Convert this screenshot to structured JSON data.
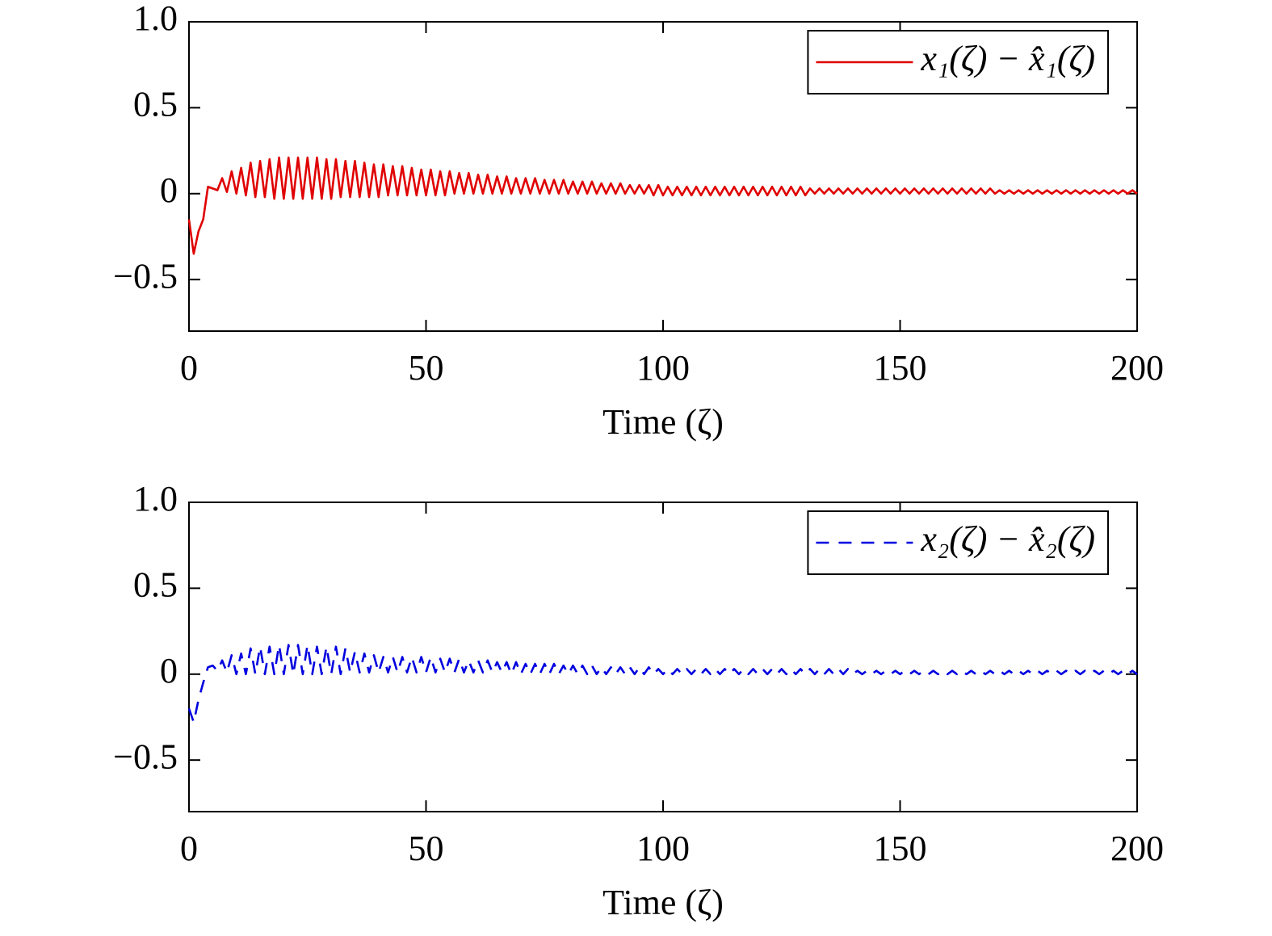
{
  "chart_data": [
    {
      "type": "line",
      "xlabel": "Time (ζ)",
      "xlim": [
        0,
        200
      ],
      "xticks": [
        0,
        50,
        100,
        150,
        200
      ],
      "ylim": [
        -0.8,
        1.0
      ],
      "yticks": [
        {
          "value": -0.5,
          "label": "−0.5"
        },
        0,
        0.5,
        {
          "value": 1.0,
          "label": "1.0"
        }
      ],
      "legend": "upper right",
      "x": [
        0,
        1,
        2,
        3,
        4,
        5,
        6,
        7,
        8,
        9,
        10,
        11,
        12,
        13,
        14,
        15,
        16,
        17,
        18,
        19,
        20,
        21,
        22,
        23,
        24,
        25,
        26,
        27,
        28,
        29,
        30,
        31,
        32,
        33,
        34,
        35,
        36,
        37,
        38,
        39,
        40,
        41,
        42,
        43,
        44,
        45,
        46,
        47,
        48,
        49,
        50,
        51,
        52,
        53,
        54,
        55,
        56,
        57,
        58,
        59,
        60,
        61,
        62,
        63,
        64,
        65,
        66,
        67,
        68,
        69,
        70,
        71,
        72,
        73,
        74,
        75,
        76,
        77,
        78,
        79,
        80,
        81,
        82,
        83,
        84,
        85,
        86,
        87,
        88,
        89,
        90,
        91,
        92,
        93,
        94,
        95,
        96,
        97,
        98,
        99,
        100,
        101,
        102,
        103,
        104,
        105,
        106,
        107,
        108,
        109,
        110,
        111,
        112,
        113,
        114,
        115,
        116,
        117,
        118,
        119,
        120,
        121,
        122,
        123,
        124,
        125,
        126,
        127,
        128,
        129,
        130,
        131,
        132,
        133,
        134,
        135,
        136,
        137,
        138,
        139,
        140,
        141,
        142,
        143,
        144,
        145,
        146,
        147,
        148,
        149,
        150,
        151,
        152,
        153,
        154,
        155,
        156,
        157,
        158,
        159,
        160,
        161,
        162,
        163,
        164,
        165,
        166,
        167,
        168,
        169,
        170,
        171,
        172,
        173,
        174,
        175,
        176,
        177,
        178,
        179,
        180,
        181,
        182,
        183,
        184,
        185,
        186,
        187,
        188,
        189,
        190,
        191,
        192,
        193,
        194,
        195,
        196,
        197,
        198,
        199,
        200
      ],
      "series": [
        {
          "name": "x₁(ζ) − x̂₁(ζ)",
          "color": "#e00000",
          "linestyle": "solid",
          "values": [
            -0.15,
            -0.35,
            -0.22,
            -0.15,
            0.04,
            0.03,
            0.02,
            0.09,
            0.01,
            0.13,
            0,
            0.15,
            -0.01,
            0.18,
            -0.02,
            0.19,
            -0.02,
            0.2,
            -0.03,
            0.21,
            -0.03,
            0.21,
            -0.03,
            0.21,
            -0.03,
            0.21,
            -0.03,
            0.21,
            -0.03,
            0.2,
            -0.03,
            0.2,
            -0.02,
            0.19,
            -0.02,
            0.19,
            -0.02,
            0.18,
            -0.02,
            0.17,
            -0.02,
            0.17,
            -0.01,
            0.16,
            -0.01,
            0.16,
            -0.01,
            0.15,
            -0.01,
            0.14,
            -0.01,
            0.14,
            -0.01,
            0.13,
            -0.01,
            0.13,
            0,
            0.12,
            0,
            0.12,
            0,
            0.11,
            0,
            0.11,
            0,
            0.1,
            0,
            0.1,
            0,
            0.09,
            0,
            0.09,
            0,
            0.09,
            0,
            0.08,
            0,
            0.08,
            0,
            0.08,
            0,
            0.07,
            0,
            0.07,
            0,
            0.07,
            0,
            0.06,
            0,
            0.06,
            0,
            0.06,
            0,
            0.05,
            0,
            0.05,
            0,
            0.05,
            -0.01,
            0.05,
            -0.01,
            0.04,
            -0.01,
            0.04,
            -0.01,
            0.04,
            -0.01,
            0.04,
            -0.01,
            0.04,
            -0.01,
            0.04,
            -0.01,
            0.04,
            -0.01,
            0.04,
            -0.01,
            0.04,
            -0.01,
            0.04,
            -0.01,
            0.04,
            -0.01,
            0.04,
            -0.01,
            0.04,
            -0.01,
            0.04,
            -0.01,
            0.04,
            -0.01,
            0.03,
            0,
            0.03,
            0,
            0.03,
            0,
            0.03,
            0,
            0.03,
            0,
            0.03,
            0,
            0.03,
            0,
            0.03,
            0,
            0.03,
            0,
            0.03,
            0,
            0.03,
            0,
            0.03,
            0,
            0.03,
            0,
            0.03,
            0,
            0.03,
            0,
            0.03,
            0,
            0.03,
            0,
            0.03,
            0,
            0.03,
            0,
            0.03,
            0,
            0.02,
            0,
            0.02,
            0,
            0.02,
            0,
            0.02,
            0,
            0.02,
            0,
            0.02,
            0,
            0.02,
            0,
            0.02,
            0,
            0.02,
            0,
            0.02,
            0,
            0.02,
            0,
            0.02,
            0,
            0.02,
            0,
            0.02,
            0,
            0.02,
            0
          ]
        }
      ]
    },
    {
      "type": "line",
      "xlabel": "Time (ζ)",
      "xlim": [
        0,
        200
      ],
      "xticks": [
        0,
        50,
        100,
        150,
        200
      ],
      "ylim": [
        -0.8,
        1.0
      ],
      "yticks": [
        {
          "value": -0.5,
          "label": "−0.5"
        },
        0,
        0.5,
        {
          "value": 1.0,
          "label": "1.0"
        }
      ],
      "legend": "upper right",
      "x": [
        0,
        1,
        2,
        3,
        4,
        5,
        6,
        7,
        8,
        9,
        10,
        11,
        12,
        13,
        14,
        15,
        16,
        17,
        18,
        19,
        20,
        21,
        22,
        23,
        24,
        25,
        26,
        27,
        28,
        29,
        30,
        31,
        32,
        33,
        34,
        35,
        36,
        37,
        38,
        39,
        40,
        41,
        42,
        43,
        44,
        45,
        46,
        47,
        48,
        49,
        50,
        51,
        52,
        53,
        54,
        55,
        56,
        57,
        58,
        59,
        60,
        61,
        62,
        63,
        64,
        65,
        66,
        67,
        68,
        69,
        70,
        71,
        72,
        73,
        74,
        75,
        76,
        77,
        78,
        79,
        80,
        81,
        82,
        83,
        84,
        85,
        86,
        87,
        88,
        89,
        90,
        91,
        92,
        93,
        94,
        95,
        96,
        97,
        98,
        99,
        100,
        101,
        102,
        103,
        104,
        105,
        106,
        107,
        108,
        109,
        110,
        111,
        112,
        113,
        114,
        115,
        116,
        117,
        118,
        119,
        120,
        121,
        122,
        123,
        124,
        125,
        126,
        127,
        128,
        129,
        130,
        131,
        132,
        133,
        134,
        135,
        136,
        137,
        138,
        139,
        140,
        141,
        142,
        143,
        144,
        145,
        146,
        147,
        148,
        149,
        150,
        151,
        152,
        153,
        154,
        155,
        156,
        157,
        158,
        159,
        160,
        161,
        162,
        163,
        164,
        165,
        166,
        167,
        168,
        169,
        170,
        171,
        172,
        173,
        174,
        175,
        176,
        177,
        178,
        179,
        180,
        181,
        182,
        183,
        184,
        185,
        186,
        187,
        188,
        189,
        190,
        191,
        192,
        193,
        194,
        195,
        196,
        197,
        198,
        199,
        200
      ],
      "series": [
        {
          "name": "x₂(ζ) − x̂₂(ζ)",
          "color": "#0000e0",
          "linestyle": "dashed",
          "values": [
            -0.2,
            -0.28,
            -0.15,
            -0.05,
            0.04,
            0.05,
            0.02,
            0.08,
            0.01,
            0.11,
            0,
            0.12,
            0,
            0.15,
            0,
            0.16,
            0,
            0.16,
            0,
            0.17,
            0,
            0.17,
            0,
            0.17,
            0,
            0.17,
            0,
            0.16,
            0,
            0.16,
            0,
            0.16,
            0,
            0.15,
            0.01,
            0.13,
            0.01,
            0.12,
            0.01,
            0.11,
            0.01,
            0.1,
            0.01,
            0.1,
            0.01,
            0.1,
            0.01,
            0.1,
            0.01,
            0.1,
            0.01,
            0.1,
            0.01,
            0.09,
            0.01,
            0.09,
            0.01,
            0.09,
            0.01,
            0.08,
            0.01,
            0.08,
            0.01,
            0.08,
            0.01,
            0.07,
            0.01,
            0.07,
            0,
            0.07,
            0,
            0.06,
            0,
            0.06,
            0,
            0.06,
            0,
            0.06,
            0,
            0.05,
            0,
            0.05,
            0,
            0.05,
            0,
            0.05,
            0,
            0.04,
            0,
            0.04,
            0,
            0.04,
            0,
            0.04,
            0,
            0.04,
            0,
            0.04,
            0,
            0.03,
            0,
            0.03,
            0,
            0.03,
            0,
            0.03,
            0,
            0.03,
            0,
            0.03,
            0,
            0.03,
            0,
            0.03,
            0,
            0.03,
            0,
            0.03,
            0,
            0.03,
            0,
            0.03,
            0,
            0.03,
            0,
            0.03,
            0,
            0.03,
            0,
            0.03,
            0,
            0.03,
            0,
            0.03,
            0,
            0.03,
            0,
            0.03,
            0,
            0.03,
            0,
            0.02,
            0,
            0.02,
            0,
            0.02,
            0,
            0.02,
            0,
            0.02,
            0,
            0.02,
            0,
            0.02,
            0,
            0.02,
            0,
            0.02,
            0,
            0.02,
            0,
            0.02,
            0,
            0.02,
            0,
            0.02,
            0,
            0.02,
            0,
            0.02,
            0,
            0.02,
            0,
            0.02,
            0,
            0.02,
            0,
            0.02,
            0,
            0.02,
            0,
            0.02,
            0,
            0.02,
            0,
            0.02,
            0,
            0.02,
            0,
            0.02,
            0,
            0.02,
            0,
            0.02,
            0,
            0.02,
            0,
            0.02,
            0,
            0.02,
            0
          ]
        }
      ]
    }
  ]
}
